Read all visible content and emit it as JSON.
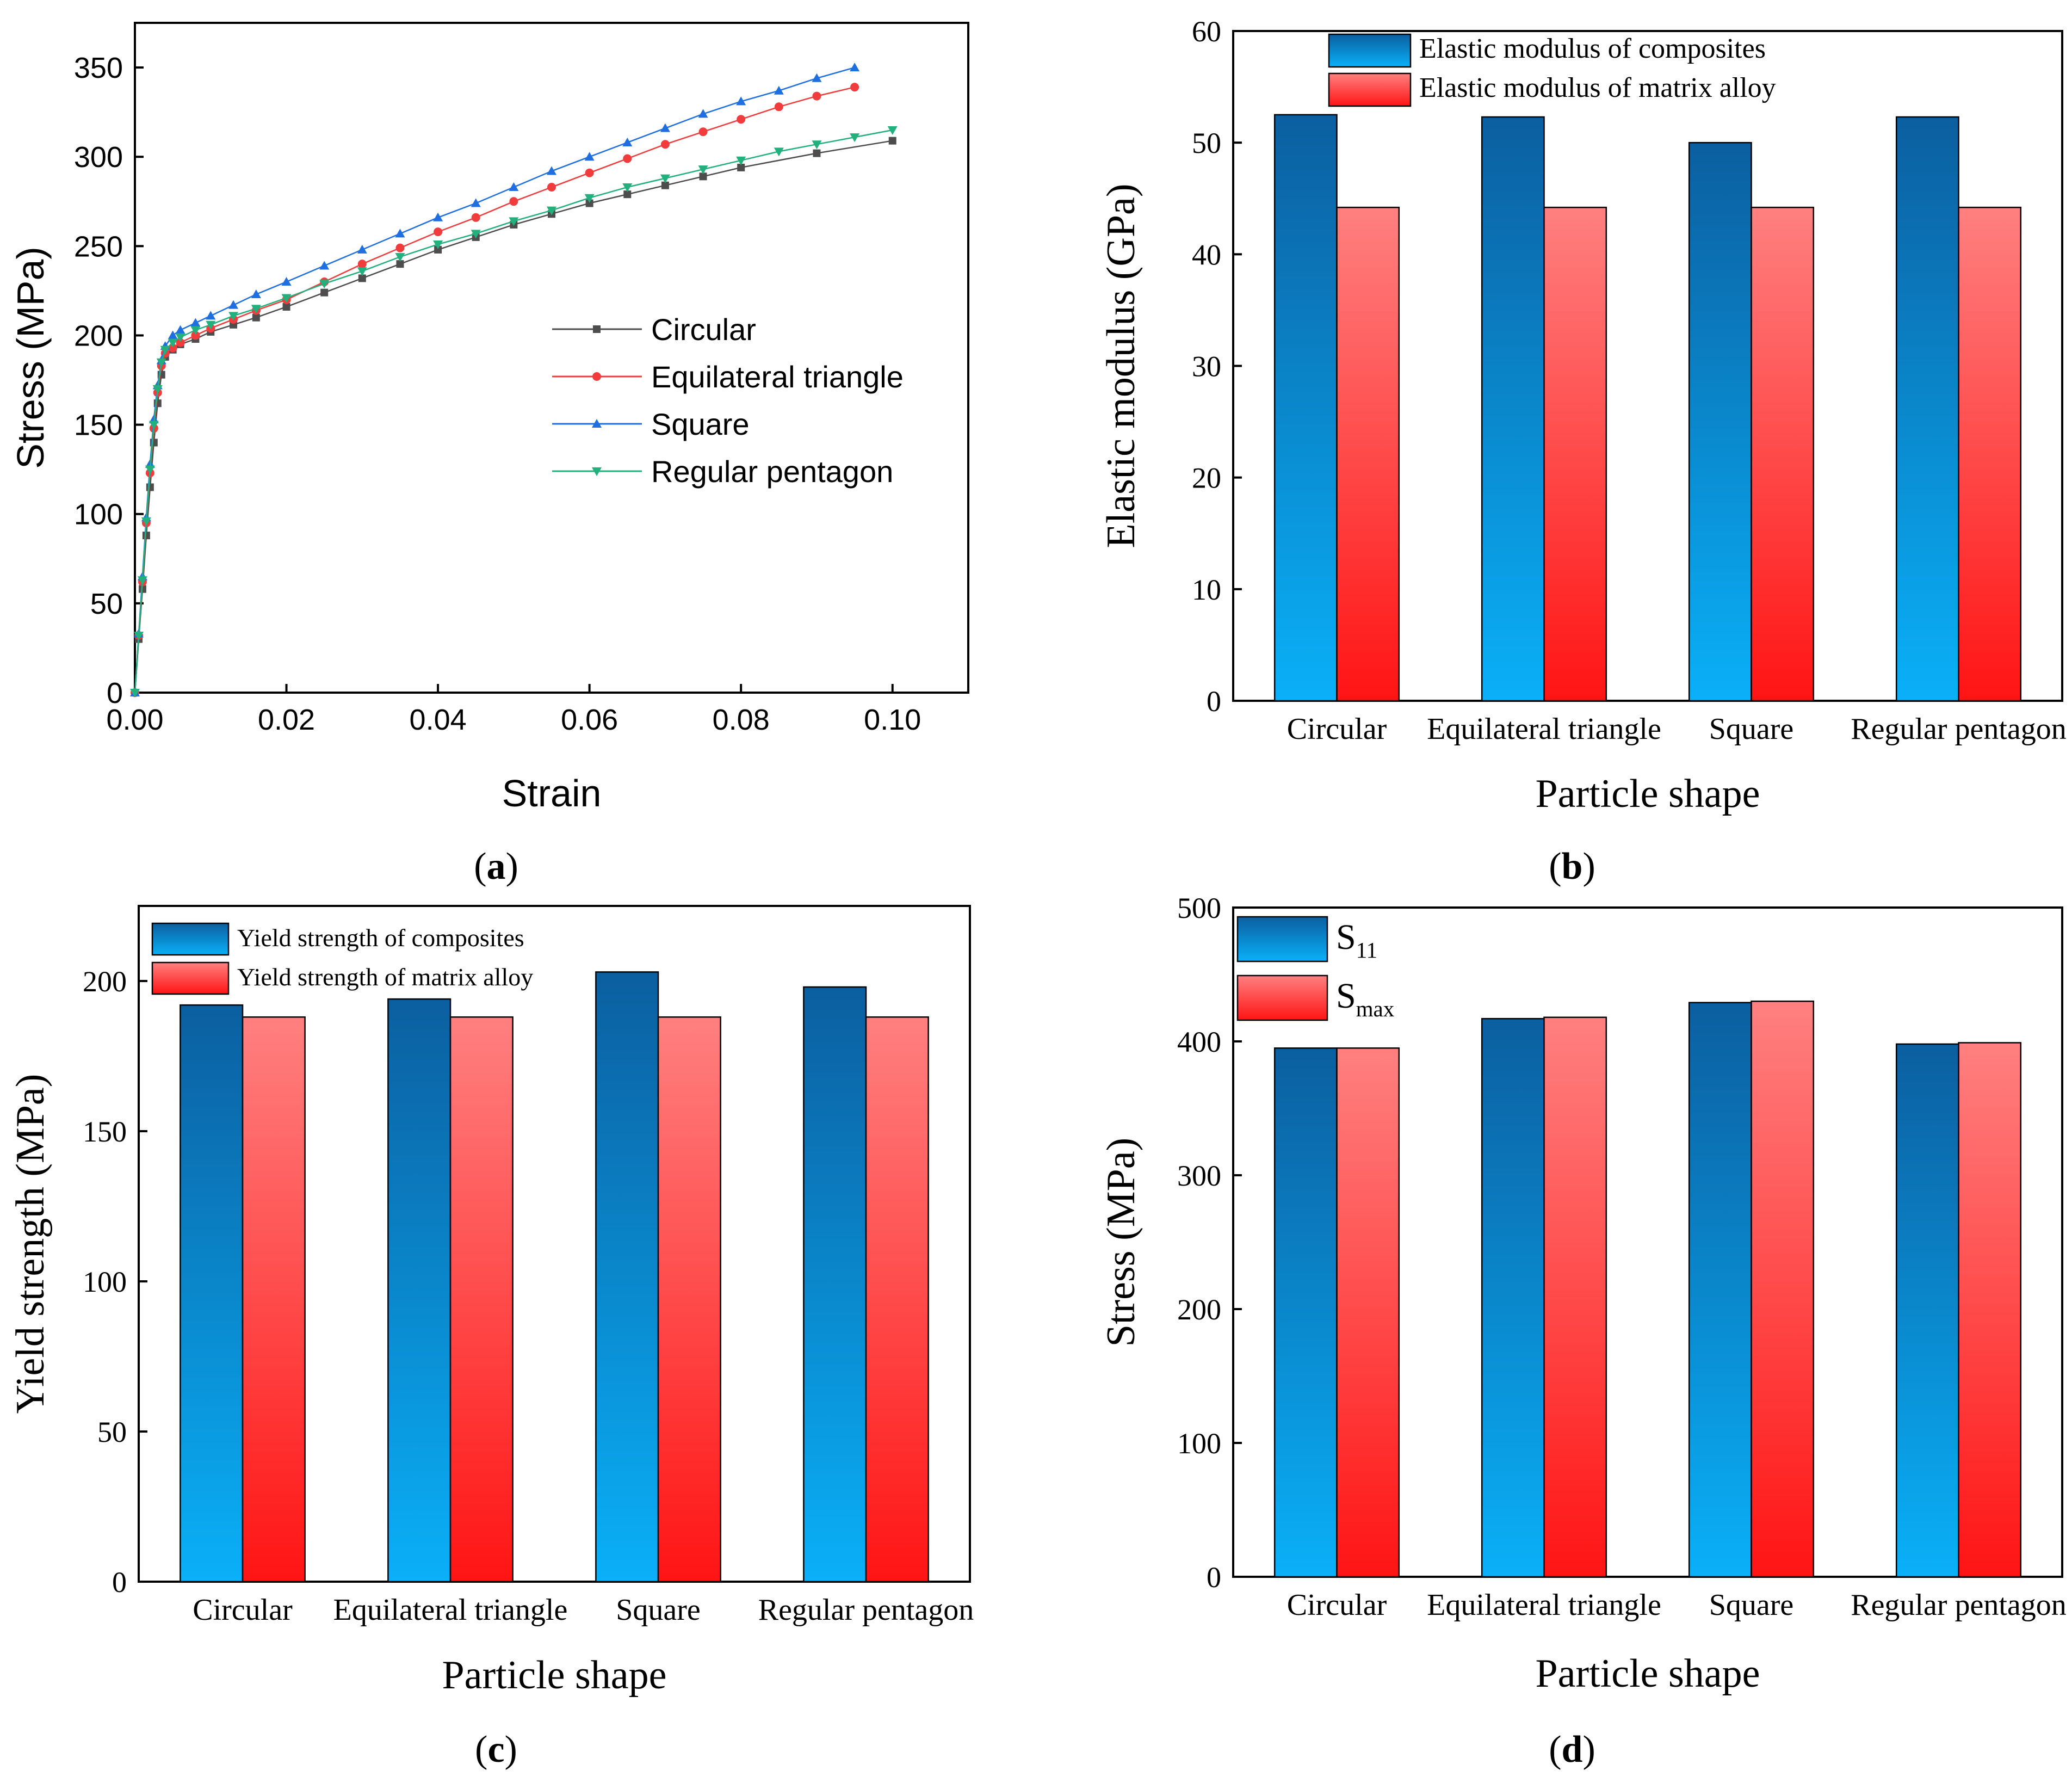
{
  "palette": {
    "circular": "#4d4d4d",
    "triangle": "#f03c3c",
    "square": "#1f6fe0",
    "pentagon": "#22b07d",
    "blue_top": "#0b5fa0",
    "blue_bottom": "#0ab0f8",
    "red_top": "#ff8080",
    "red_bottom": "#ff1414"
  },
  "chart_data": [
    {
      "id": "a",
      "panel_label": "a",
      "type": "line",
      "title": "",
      "xlabel": "Strain",
      "ylabel": "Stress (MPa)",
      "xlim": [
        0,
        0.11
      ],
      "ylim": [
        0,
        375
      ],
      "x_ticks": [
        "0.00",
        "0.02",
        "0.04",
        "0.06",
        "0.08",
        "0.10"
      ],
      "y_ticks": [
        "0",
        "50",
        "100",
        "150",
        "200",
        "250",
        "300",
        "350"
      ],
      "legend_position": "center-right",
      "series": [
        {
          "name": "Circular",
          "color_key": "circular",
          "marker": "square",
          "x": [
            0,
            0.0005,
            0.001,
            0.0015,
            0.002,
            0.0025,
            0.003,
            0.0035,
            0.004,
            0.005,
            0.006,
            0.008,
            0.01,
            0.013,
            0.016,
            0.02,
            0.025,
            0.03,
            0.035,
            0.04,
            0.045,
            0.05,
            0.055,
            0.06,
            0.065,
            0.07,
            0.075,
            0.08,
            0.09,
            0.1
          ],
          "y": [
            0,
            30,
            58,
            88,
            115,
            140,
            162,
            178,
            188,
            192,
            195,
            198,
            202,
            206,
            210,
            216,
            224,
            232,
            240,
            248,
            255,
            262,
            268,
            274,
            279,
            284,
            289,
            294,
            302,
            309
          ]
        },
        {
          "name": "Equilateral triangle",
          "color_key": "triangle",
          "marker": "circle",
          "x": [
            0,
            0.0005,
            0.001,
            0.0015,
            0.002,
            0.0025,
            0.003,
            0.0035,
            0.004,
            0.005,
            0.006,
            0.008,
            0.01,
            0.013,
            0.016,
            0.02,
            0.025,
            0.03,
            0.035,
            0.04,
            0.045,
            0.05,
            0.055,
            0.06,
            0.065,
            0.07,
            0.075,
            0.08,
            0.085,
            0.09,
            0.095
          ],
          "y": [
            0,
            32,
            62,
            95,
            123,
            148,
            168,
            183,
            190,
            193,
            196,
            200,
            204,
            209,
            214,
            220,
            230,
            240,
            249,
            258,
            266,
            275,
            283,
            291,
            299,
            307,
            314,
            321,
            328,
            334,
            339
          ]
        },
        {
          "name": "Square",
          "color_key": "square",
          "marker": "triangle-up",
          "x": [
            0,
            0.0005,
            0.001,
            0.0015,
            0.002,
            0.0025,
            0.003,
            0.0035,
            0.004,
            0.005,
            0.006,
            0.008,
            0.01,
            0.013,
            0.016,
            0.02,
            0.025,
            0.03,
            0.035,
            0.04,
            0.045,
            0.05,
            0.055,
            0.06,
            0.065,
            0.07,
            0.075,
            0.08,
            0.085,
            0.09,
            0.095
          ],
          "y": [
            0,
            33,
            65,
            98,
            128,
            153,
            172,
            186,
            194,
            200,
            203,
            207,
            211,
            217,
            223,
            230,
            239,
            248,
            257,
            266,
            274,
            283,
            292,
            300,
            308,
            316,
            324,
            331,
            337,
            344,
            350
          ]
        },
        {
          "name": "Regular pentagon",
          "color_key": "pentagon",
          "marker": "triangle-down",
          "x": [
            0,
            0.0005,
            0.001,
            0.0015,
            0.002,
            0.0025,
            0.003,
            0.0035,
            0.004,
            0.005,
            0.006,
            0.008,
            0.01,
            0.013,
            0.016,
            0.02,
            0.025,
            0.03,
            0.035,
            0.04,
            0.045,
            0.05,
            0.055,
            0.06,
            0.065,
            0.07,
            0.075,
            0.08,
            0.085,
            0.09,
            0.095,
            0.1
          ],
          "y": [
            0,
            32,
            63,
            96,
            125,
            150,
            170,
            185,
            192,
            196,
            199,
            203,
            206,
            211,
            215,
            221,
            229,
            236,
            244,
            251,
            257,
            264,
            270,
            277,
            283,
            288,
            293,
            298,
            303,
            307,
            311,
            315
          ]
        }
      ]
    },
    {
      "id": "b",
      "panel_label": "b",
      "type": "bar",
      "title": "",
      "xlabel": "Particle shape",
      "ylabel": "Elastic modulus (GPa)",
      "ylim": [
        0,
        60
      ],
      "y_ticks": [
        "0",
        "10",
        "20",
        "30",
        "40",
        "50",
        "60"
      ],
      "categories": [
        "Circular",
        "Equilateral triangle",
        "Square",
        "Regular pentagon"
      ],
      "legend_position": "top-center",
      "series": [
        {
          "name": "Elastic modulus of composites",
          "color": "blue",
          "values": [
            52.5,
            52.3,
            50.0,
            52.3
          ]
        },
        {
          "name": "Elastic modulus of matrix alloy",
          "color": "red",
          "values": [
            44.2,
            44.2,
            44.2,
            44.2
          ]
        }
      ]
    },
    {
      "id": "c",
      "panel_label": "c",
      "type": "bar",
      "title": "",
      "xlabel": "Particle shape",
      "ylabel": "Yield strength (MPa)",
      "ylim": [
        0,
        225
      ],
      "y_ticks": [
        "0",
        "50",
        "100",
        "150",
        "200"
      ],
      "categories": [
        "Circular",
        "Equilateral triangle",
        "Square",
        "Regular pentagon"
      ],
      "legend_position": "top-left",
      "series": [
        {
          "name": "Yield strength of composites",
          "color": "blue",
          "values": [
            192,
            194,
            203,
            198
          ]
        },
        {
          "name": "Yield strength of matrix alloy",
          "color": "red",
          "values": [
            188,
            188,
            188,
            188
          ]
        }
      ]
    },
    {
      "id": "d",
      "panel_label": "d",
      "type": "bar",
      "title": "",
      "xlabel": "Particle shape",
      "ylabel": "Stress (MPa)",
      "ylim": [
        0,
        500
      ],
      "y_ticks": [
        "0",
        "100",
        "200",
        "300",
        "400",
        "500"
      ],
      "categories": [
        "Circular",
        "Equilateral triangle",
        "Square",
        "Regular pentagon"
      ],
      "legend_position": "top-left",
      "series": [
        {
          "name": "S",
          "sub": "11",
          "color": "blue",
          "values": [
            395,
            417,
            429,
            398
          ]
        },
        {
          "name": "S",
          "sub": "max",
          "color": "red",
          "values": [
            395,
            418,
            430,
            399
          ]
        }
      ]
    }
  ]
}
